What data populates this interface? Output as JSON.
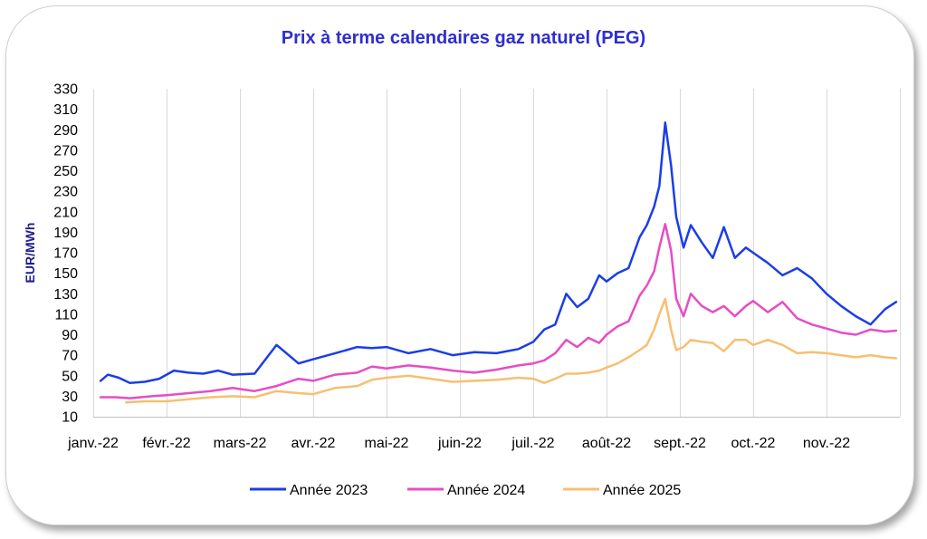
{
  "chart_data": {
    "type": "line",
    "title": "Prix à terme calendaires gaz naturel (PEG)",
    "ylabel": "EUR/MWh",
    "xlabel": "",
    "ylim": [
      10,
      330
    ],
    "yticks": [
      10,
      30,
      50,
      70,
      90,
      110,
      130,
      150,
      170,
      190,
      210,
      230,
      250,
      270,
      290,
      310,
      330
    ],
    "xticks": [
      "janv.-22",
      "févr.-22",
      "mars-22",
      "avr.-22",
      "mai-22",
      "juin-22",
      "juil.-22",
      "août-22",
      "sept.-22",
      "oct.-22",
      "nov.-22"
    ],
    "grid": "vertical",
    "legend": "bottom",
    "title_color": "#2e2ed1",
    "axis_label_color": "#1f1f8f",
    "series": [
      {
        "name": "Année 2023",
        "color": "#1b3ee6",
        "x": [
          0.1,
          0.2,
          0.35,
          0.5,
          0.7,
          0.9,
          1.1,
          1.3,
          1.5,
          1.7,
          1.9,
          2.2,
          2.5,
          2.8,
          3.0,
          3.3,
          3.6,
          3.8,
          4.0,
          4.3,
          4.6,
          4.9,
          5.2,
          5.5,
          5.8,
          6.0,
          6.15,
          6.3,
          6.45,
          6.6,
          6.75,
          6.9,
          7.0,
          7.15,
          7.3,
          7.45,
          7.55,
          7.65,
          7.72,
          7.8,
          7.88,
          7.95,
          8.05,
          8.15,
          8.3,
          8.45,
          8.6,
          8.75,
          8.9,
          9.0,
          9.2,
          9.4,
          9.6,
          9.8,
          10.0,
          10.2,
          10.4,
          10.6,
          10.8,
          10.95
        ],
        "y": [
          45,
          51,
          48,
          43,
          44,
          47,
          55,
          53,
          52,
          55,
          51,
          52,
          80,
          62,
          66,
          72,
          78,
          77,
          78,
          72,
          76,
          70,
          73,
          72,
          76,
          83,
          95,
          100,
          130,
          117,
          125,
          148,
          142,
          150,
          155,
          185,
          197,
          215,
          235,
          297,
          255,
          205,
          175,
          197,
          180,
          165,
          195,
          165,
          175,
          170,
          160,
          148,
          155,
          145,
          130,
          118,
          108,
          100,
          115,
          122
        ]
      },
      {
        "name": "Année 2024",
        "color": "#e64dc4",
        "x": [
          0.1,
          0.3,
          0.5,
          0.8,
          1.0,
          1.3,
          1.6,
          1.9,
          2.2,
          2.5,
          2.8,
          3.0,
          3.3,
          3.6,
          3.8,
          4.0,
          4.3,
          4.6,
          4.9,
          5.2,
          5.5,
          5.8,
          6.0,
          6.15,
          6.3,
          6.45,
          6.6,
          6.75,
          6.9,
          7.0,
          7.15,
          7.3,
          7.45,
          7.55,
          7.65,
          7.72,
          7.8,
          7.88,
          7.95,
          8.05,
          8.15,
          8.3,
          8.45,
          8.6,
          8.75,
          8.9,
          9.0,
          9.2,
          9.4,
          9.6,
          9.8,
          10.0,
          10.2,
          10.4,
          10.6,
          10.8,
          10.95
        ],
        "y": [
          29,
          29,
          28,
          30,
          31,
          33,
          35,
          38,
          35,
          40,
          47,
          45,
          51,
          53,
          59,
          57,
          60,
          58,
          55,
          53,
          56,
          60,
          62,
          65,
          72,
          85,
          78,
          87,
          82,
          90,
          98,
          103,
          128,
          138,
          152,
          175,
          198,
          172,
          125,
          108,
          130,
          118,
          112,
          118,
          108,
          118,
          123,
          112,
          122,
          106,
          100,
          96,
          92,
          90,
          95,
          93,
          94
        ]
      },
      {
        "name": "Année 2025",
        "color": "#f7bf72",
        "x": [
          0.45,
          0.7,
          1.0,
          1.3,
          1.6,
          1.9,
          2.2,
          2.5,
          2.8,
          3.0,
          3.3,
          3.6,
          3.8,
          4.0,
          4.3,
          4.6,
          4.9,
          5.2,
          5.5,
          5.8,
          6.0,
          6.15,
          6.3,
          6.45,
          6.6,
          6.75,
          6.9,
          7.0,
          7.15,
          7.3,
          7.45,
          7.55,
          7.65,
          7.72,
          7.8,
          7.88,
          7.95,
          8.05,
          8.15,
          8.3,
          8.45,
          8.6,
          8.75,
          8.9,
          9.0,
          9.2,
          9.4,
          9.6,
          9.8,
          10.0,
          10.2,
          10.4,
          10.6,
          10.8,
          10.95
        ],
        "y": [
          24,
          25,
          25,
          27,
          29,
          30,
          29,
          35,
          33,
          32,
          38,
          40,
          46,
          48,
          50,
          47,
          44,
          45,
          46,
          48,
          47,
          43,
          47,
          52,
          52,
          53,
          55,
          58,
          62,
          68,
          75,
          80,
          95,
          110,
          125,
          95,
          75,
          78,
          85,
          83,
          82,
          74,
          85,
          85,
          80,
          85,
          80,
          72,
          73,
          72,
          70,
          68,
          70,
          68,
          67
        ]
      }
    ]
  }
}
